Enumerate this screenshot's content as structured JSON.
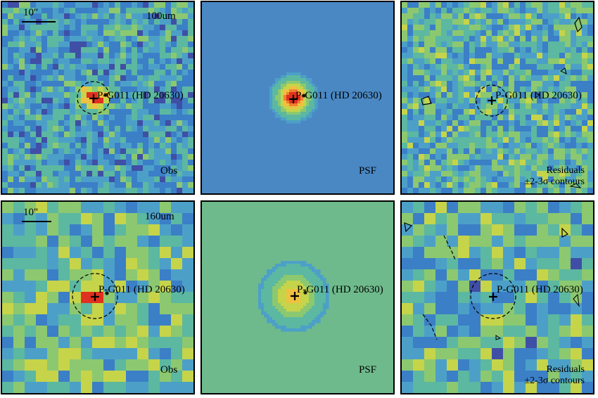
{
  "figure": {
    "rows": [
      {
        "band": "100um",
        "scale_bar": "10\"",
        "panels": [
          {
            "id": "obs",
            "kind": "observed",
            "corner_label": "Obs",
            "source": "P-G011 (HD 20630)",
            "field": "noisy-blue"
          },
          {
            "id": "psf",
            "kind": "psf",
            "corner_label": "PSF",
            "source": "P-G011 (HD 20630)",
            "field": "psf-blue"
          },
          {
            "id": "res",
            "kind": "residual",
            "corner_label": "Residuals",
            "contour_note": "±2-3σ contours",
            "source": "P-G011 (HD 20630)",
            "field": "residual"
          }
        ]
      },
      {
        "band": "160um",
        "scale_bar": "10\"",
        "panels": [
          {
            "id": "obs",
            "kind": "observed",
            "corner_label": "Obs",
            "source": "P-G011 (HD 20630)",
            "field": "coarse-noisy"
          },
          {
            "id": "psf",
            "kind": "psf",
            "corner_label": "PSF",
            "source": "P-G011 (HD 20630)",
            "field": "psf-green"
          },
          {
            "id": "res",
            "kind": "residual",
            "corner_label": "Residuals",
            "contour_note": "±2-3σ contours",
            "source": "P-G011 (HD 20630)",
            "field": "residual-coarse"
          }
        ]
      }
    ],
    "colormap": [
      "#2a1a6e",
      "#3f4fa6",
      "#3b7fc7",
      "#4ca0c8",
      "#5cb8a0",
      "#8cc870",
      "#c6d44a",
      "#f0c040",
      "#f08030",
      "#e03020"
    ]
  }
}
